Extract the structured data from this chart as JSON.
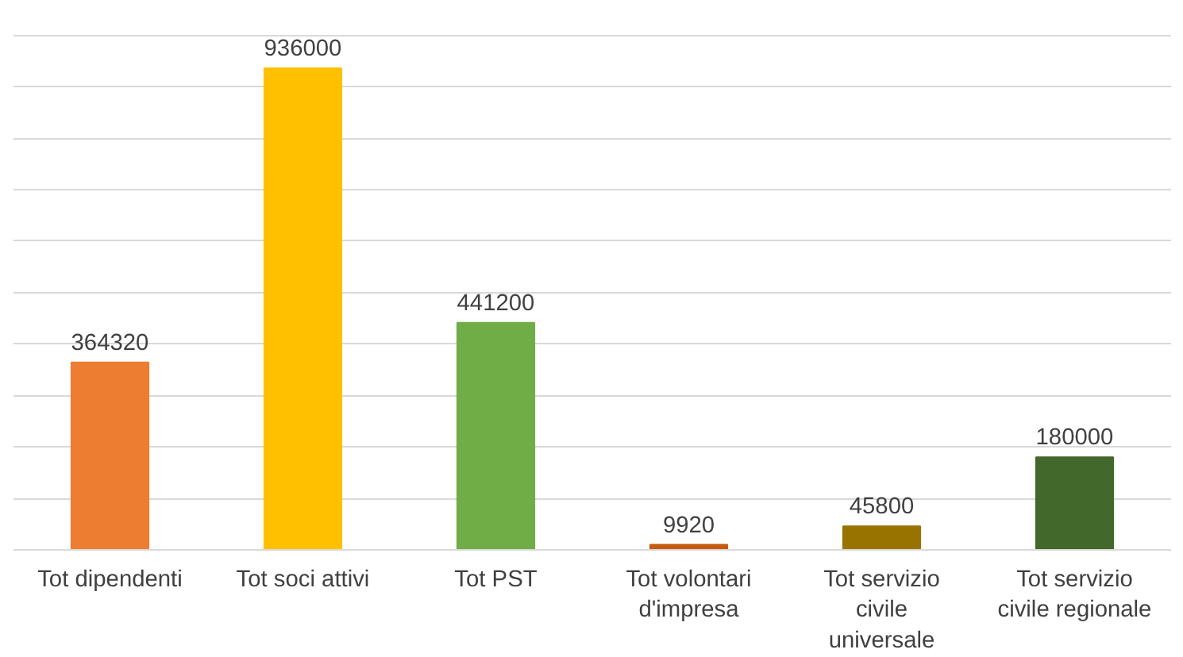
{
  "chart_data": {
    "type": "bar",
    "categories": [
      "Tot dipendenti",
      "Tot soci attivi",
      "Tot PST",
      "Tot volontari d'impresa",
      "Tot servizio civile universale",
      "Tot servizio civile regionale"
    ],
    "values": [
      364320,
      936000,
      441200,
      9920,
      45800,
      180000
    ],
    "colors": [
      "#ed7d31",
      "#ffc000",
      "#70ad47",
      "#c55a11",
      "#997300",
      "#43682b"
    ],
    "yticks": [
      {
        "value": 0,
        "label": null
      },
      {
        "value": 100000,
        "label": null
      },
      {
        "value": 200000,
        "label": null
      },
      {
        "value": 300000,
        "label": null
      },
      {
        "value": 400000,
        "label": null
      },
      {
        "value": 500000,
        "label": null
      },
      {
        "value": 600000,
        "label": null
      },
      {
        "value": 700000,
        "label": null
      },
      {
        "value": 800000,
        "label": null
      },
      {
        "value": 900000,
        "label": null
      },
      {
        "value": 1000000,
        "label": null
      }
    ],
    "tick_labels": "x",
    "grid": "y",
    "data_labels": true
  }
}
